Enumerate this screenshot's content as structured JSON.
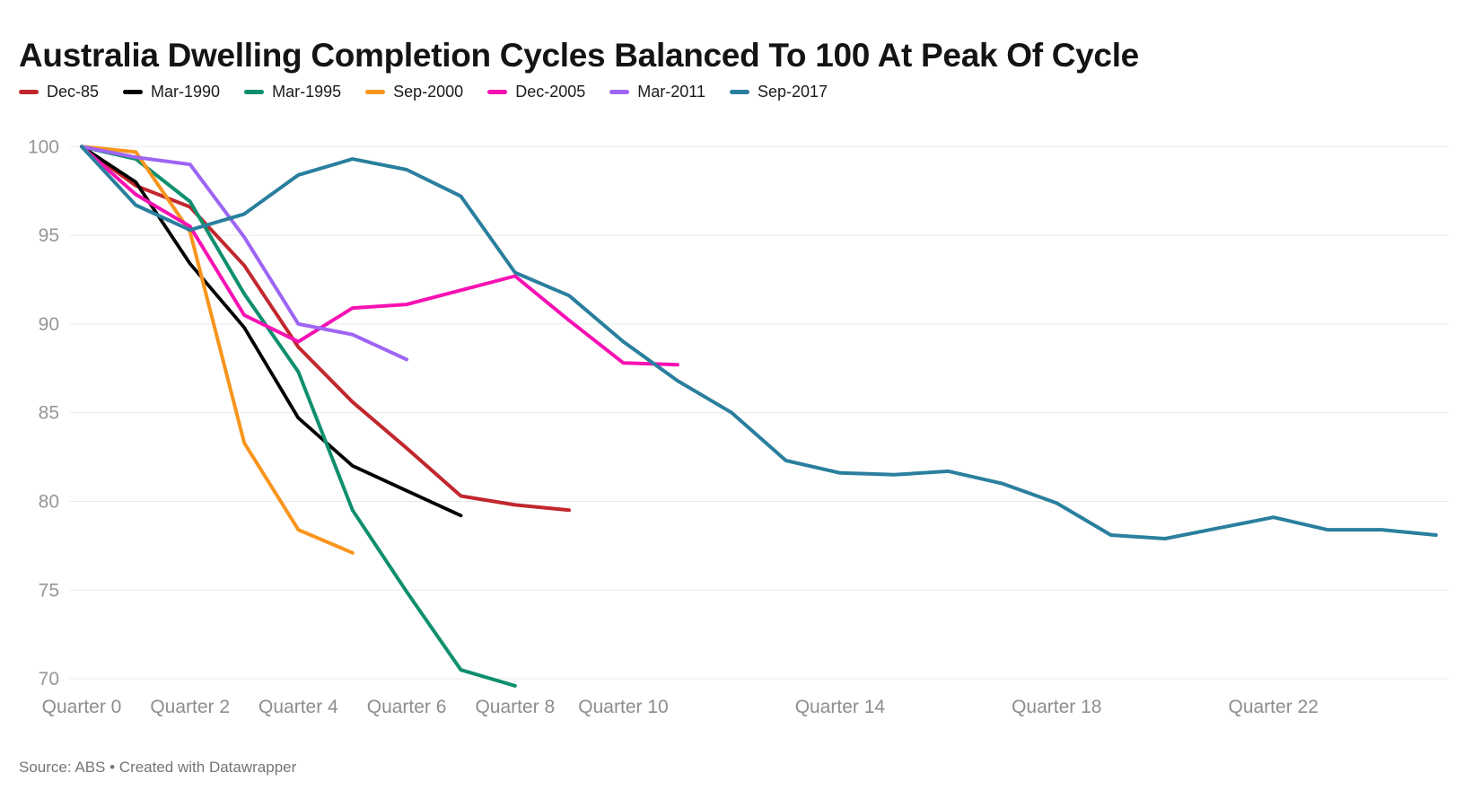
{
  "title": "Australia Dwelling Completion Cycles Balanced To 100 At Peak Of Cycle",
  "source_note": "Source: ABS • Created with Datawrapper",
  "chart_data": {
    "type": "line",
    "title": "Australia Dwelling Completion Cycles Balanced To 100 At Peak Of Cycle",
    "xlabel": "",
    "ylabel": "",
    "x_unit": "Quarter",
    "ylim": [
      70,
      100
    ],
    "yticks": [
      100,
      95,
      90,
      85,
      80,
      75,
      70
    ],
    "xticks": [
      {
        "quarter": 0,
        "label": "Quarter 0"
      },
      {
        "quarter": 2,
        "label": "Quarter 2"
      },
      {
        "quarter": 4,
        "label": "Quarter 4"
      },
      {
        "quarter": 6,
        "label": "Quarter 6"
      },
      {
        "quarter": 8,
        "label": "Quarter 8"
      },
      {
        "quarter": 10,
        "label": "Quarter 10"
      },
      {
        "quarter": 14,
        "label": "Quarter 14"
      },
      {
        "quarter": 18,
        "label": "Quarter 18"
      },
      {
        "quarter": 22,
        "label": "Quarter 22"
      }
    ],
    "grid": "horizontal",
    "legend_position": "top",
    "series": [
      {
        "name": "Dec-85",
        "color": "#c1272d",
        "values": [
          100,
          97.8,
          96.6,
          93.3,
          88.7,
          85.6,
          83.0,
          80.3,
          79.8,
          79.5
        ]
      },
      {
        "name": "Mar-1990",
        "color": "#000000",
        "values": [
          100,
          98.0,
          93.4,
          89.8,
          84.7,
          82.0,
          80.6,
          79.2
        ]
      },
      {
        "name": "Mar-1995",
        "color": "#0e8f6d",
        "values": [
          100,
          99.3,
          96.9,
          91.7,
          87.3,
          79.5,
          74.9,
          70.5,
          69.6
        ]
      },
      {
        "name": "Sep-2000",
        "color": "#f8951d",
        "values": [
          100,
          99.7,
          95.2,
          83.3,
          78.4,
          77.1
        ]
      },
      {
        "name": "Dec-2005",
        "color": "#f711b3",
        "values": [
          100,
          97.3,
          95.5,
          90.5,
          89.0,
          90.9,
          91.1,
          91.9,
          92.7,
          90.2,
          87.8,
          87.7
        ]
      },
      {
        "name": "Mar-2011",
        "color": "#9e64f4",
        "values": [
          100,
          99.4,
          99.0,
          94.9,
          90.0,
          89.4,
          88.0
        ]
      },
      {
        "name": "Sep-2017",
        "color": "#2a7f9e",
        "values": [
          100,
          96.7,
          95.3,
          96.2,
          98.4,
          99.3,
          98.7,
          97.2,
          92.9,
          91.6,
          89.0,
          86.8,
          85.0,
          82.3,
          81.6,
          81.5,
          81.7,
          81.0,
          79.9,
          78.1,
          77.9,
          78.5,
          79.1,
          78.4,
          78.4,
          78.1
        ]
      }
    ]
  }
}
